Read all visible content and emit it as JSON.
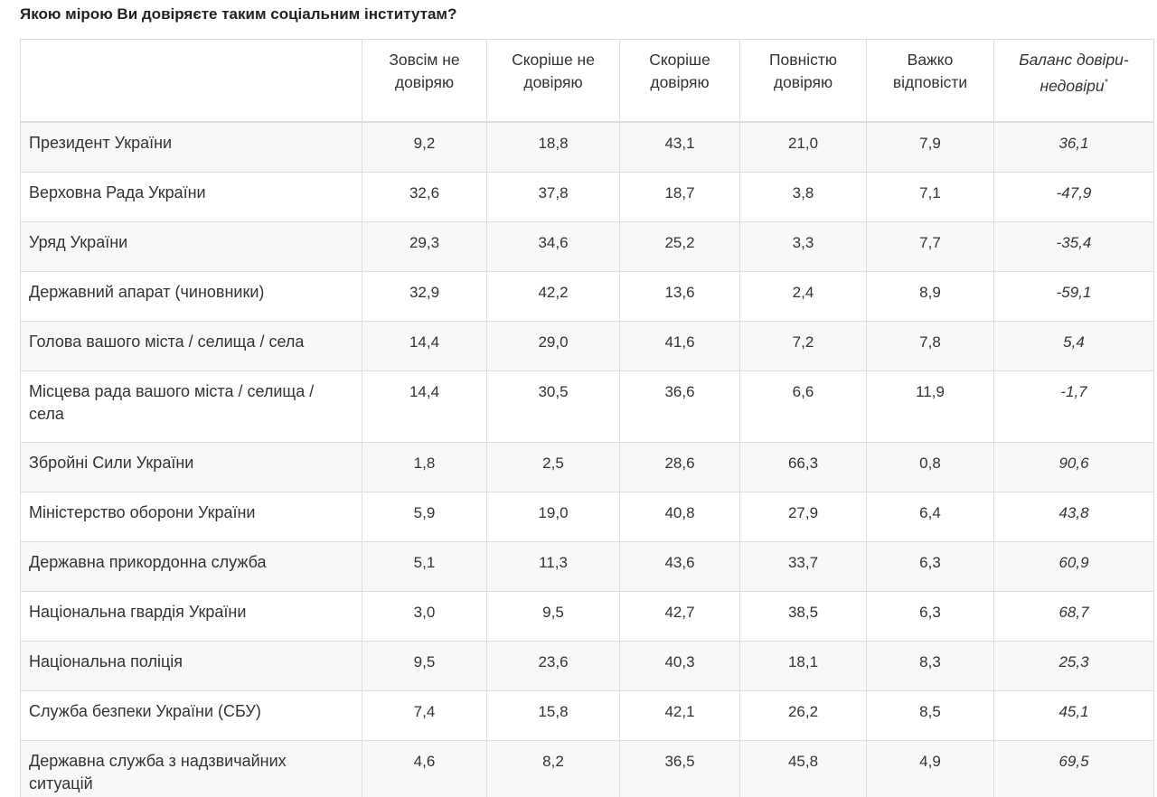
{
  "title": "Якою мірою Ви довіряєте таким соціальним інститутам?",
  "table": {
    "columns": [
      "Зовсім не довіряю",
      "Скоріше не довіряю",
      "Скоріше довіряю",
      "Повністю довіряю",
      "Важко відповісти",
      {
        "text": "Баланс довіри-недовіри",
        "note": "*"
      }
    ],
    "rows": [
      {
        "label": "Президент України",
        "cells": [
          "9,2",
          "18,8",
          "43,1",
          "21,0",
          "7,9",
          "36,1"
        ]
      },
      {
        "label": "Верховна Рада України",
        "cells": [
          "32,6",
          "37,8",
          "18,7",
          "3,8",
          "7,1",
          "-47,9"
        ]
      },
      {
        "label": "Уряд України",
        "cells": [
          "29,3",
          "34,6",
          "25,2",
          "3,3",
          "7,7",
          "-35,4"
        ]
      },
      {
        "label": "Державний апарат (чиновники)",
        "cells": [
          "32,9",
          "42,2",
          "13,6",
          "2,4",
          "8,9",
          "-59,1"
        ]
      },
      {
        "label": "Голова вашого міста / селища / села",
        "cells": [
          "14,4",
          "29,0",
          "41,6",
          "7,2",
          "7,8",
          "5,4"
        ]
      },
      {
        "label": "Місцева рада вашого міста / селища / села",
        "cells": [
          "14,4",
          "30,5",
          "36,6",
          "6,6",
          "11,9",
          "-1,7"
        ]
      },
      {
        "label": "Збройні Сили України",
        "cells": [
          "1,8",
          "2,5",
          "28,6",
          "66,3",
          "0,8",
          "90,6"
        ]
      },
      {
        "label": "Міністерство оборони України",
        "cells": [
          "5,9",
          "19,0",
          "40,8",
          "27,9",
          "6,4",
          "43,8"
        ]
      },
      {
        "label": "Державна прикордонна служба",
        "cells": [
          "5,1",
          "11,3",
          "43,6",
          "33,7",
          "6,3",
          "60,9"
        ]
      },
      {
        "label": "Національна гвардія України",
        "cells": [
          "3,0",
          "9,5",
          "42,7",
          "38,5",
          "6,3",
          "68,7"
        ]
      },
      {
        "label": "Національна поліція",
        "cells": [
          "9,5",
          "23,6",
          "40,3",
          "18,1",
          "8,3",
          "25,3"
        ]
      },
      {
        "label": "Служба безпеки України (СБУ)",
        "cells": [
          "7,4",
          "15,8",
          "42,1",
          "26,2",
          "8,5",
          "45,1"
        ]
      },
      {
        "label": "Державна служба з надзвичайних ситуацій",
        "cells": [
          "4,6",
          "8,2",
          "36,5",
          "45,8",
          "4,9",
          "69,5"
        ]
      }
    ]
  }
}
